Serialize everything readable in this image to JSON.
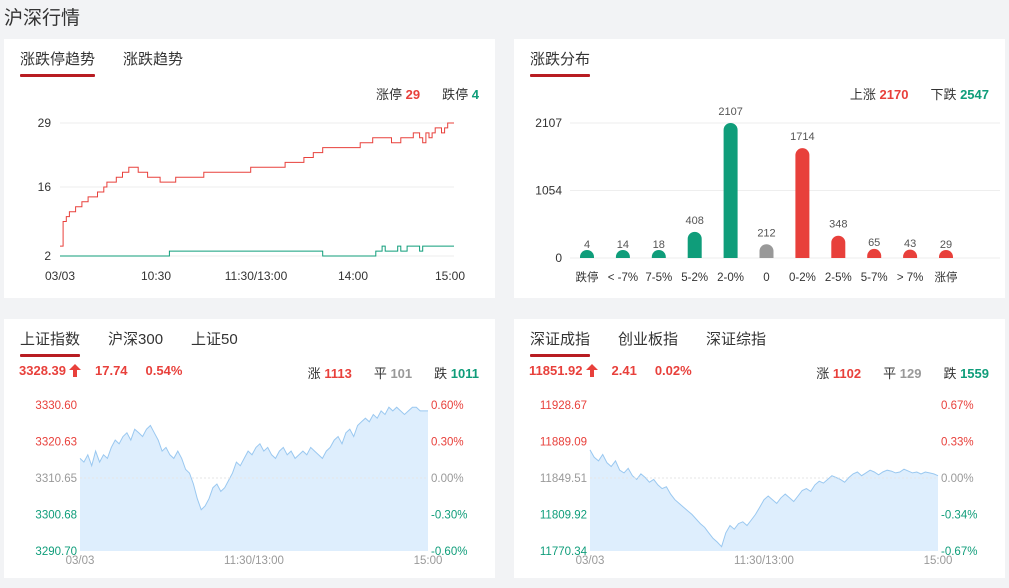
{
  "page_title": "沪深行情",
  "panel_limit": {
    "tabs": [
      "涨跌停趋势",
      "涨跌趋势"
    ],
    "stats": {
      "up_label": "涨停",
      "up_value": "29",
      "down_label": "跌停",
      "down_value": "4"
    }
  },
  "panel_dist": {
    "tabs": [
      "涨跌分布"
    ],
    "stats": {
      "up_label": "上涨",
      "up_value": "2170",
      "down_label": "下跌",
      "down_value": "2547"
    }
  },
  "panel_sh": {
    "tabs": [
      "上证指数",
      "沪深300",
      "上证50"
    ],
    "price": "3328.39",
    "change": "17.74",
    "change_pct": "0.54%",
    "stats": {
      "up_label": "涨",
      "up_value": "1113",
      "flat_label": "平",
      "flat_value": "101",
      "down_label": "跌",
      "down_value": "1011"
    }
  },
  "panel_sz": {
    "tabs": [
      "深证成指",
      "创业板指",
      "深证综指"
    ],
    "price": "11851.92",
    "change": "2.41",
    "change_pct": "0.02%",
    "stats": {
      "up_label": "涨",
      "up_value": "1102",
      "flat_label": "平",
      "flat_value": "129",
      "down_label": "跌",
      "down_value": "1559"
    }
  },
  "colors": {
    "up": "#e8403b",
    "down": "#0f9d7a",
    "flat": "#999999",
    "area": "#deeefd",
    "area_line": "#9ac8f0",
    "accent": "#b81c22"
  },
  "chart_data": [
    {
      "type": "line",
      "y_ticks": [
        2,
        16,
        29
      ],
      "ylim": [
        2,
        29
      ],
      "x_tick_labels": [
        "03/03",
        "10:30",
        "11:30/13:00",
        "14:00",
        "15:00"
      ],
      "series": [
        {
          "name": "涨停",
          "color": "#e8403b",
          "values": [
            4,
            9,
            10,
            11,
            11,
            12,
            12,
            13,
            13,
            14,
            14,
            14,
            15,
            15,
            16,
            17,
            17,
            17,
            18,
            18,
            19,
            19,
            20,
            20,
            20,
            19,
            19,
            19,
            18,
            18,
            18,
            18,
            17,
            17,
            17,
            17,
            17,
            18,
            18,
            18,
            18,
            18,
            18,
            18,
            18,
            18,
            19,
            19,
            19,
            19,
            19,
            19,
            19,
            19,
            19,
            19,
            19,
            19,
            19,
            19,
            19,
            20,
            20,
            20,
            20,
            20,
            20,
            20,
            20,
            20,
            20,
            20,
            21,
            21,
            21,
            21,
            21,
            21,
            22,
            22,
            22,
            23,
            23,
            23,
            24,
            24,
            24,
            24,
            24,
            24,
            24,
            24,
            24,
            24,
            24,
            24,
            25,
            25,
            25,
            25,
            26,
            26,
            26,
            26,
            26,
            26,
            25,
            25,
            25,
            26,
            26,
            26,
            26,
            27,
            27,
            26,
            25,
            27,
            26,
            27,
            28,
            28,
            27,
            28,
            29,
            29,
            29
          ]
        },
        {
          "name": "跌停",
          "color": "#0f9d7a",
          "values": [
            2,
            2,
            2,
            2,
            2,
            2,
            2,
            2,
            2,
            2,
            2,
            2,
            2,
            2,
            2,
            2,
            2,
            2,
            2,
            2,
            2,
            2,
            2,
            2,
            2,
            2,
            2,
            2,
            2,
            2,
            2,
            2,
            2,
            2,
            2,
            3,
            3,
            3,
            3,
            3,
            3,
            3,
            3,
            3,
            3,
            3,
            3,
            3,
            3,
            3,
            3,
            3,
            3,
            3,
            3,
            3,
            3,
            3,
            3,
            3,
            3,
            3,
            3,
            3,
            3,
            3,
            3,
            3,
            3,
            3,
            3,
            3,
            3,
            3,
            3,
            3,
            3,
            3,
            3,
            3,
            3,
            3,
            3,
            3,
            2,
            2,
            2,
            2,
            2,
            2,
            2,
            2,
            2,
            2,
            2,
            2,
            2,
            2,
            2,
            2,
            2,
            3,
            3,
            4,
            3,
            3,
            3,
            3,
            4,
            3,
            3,
            4,
            4,
            4,
            4,
            3,
            4,
            4,
            4,
            4,
            4,
            4,
            4,
            4,
            4,
            4,
            4
          ]
        }
      ]
    },
    {
      "type": "bar",
      "y_ticks": [
        0,
        1054,
        2107
      ],
      "ylim": [
        0,
        2107
      ],
      "categories": [
        "跌停",
        "< -7%",
        "7-5%",
        "5-2%",
        "2-0%",
        "0",
        "0-2%",
        "2-5%",
        "5-7%",
        "> 7%",
        "涨停"
      ],
      "values": [
        4,
        14,
        18,
        408,
        2107,
        212,
        1714,
        348,
        65,
        43,
        29
      ],
      "bar_colors": [
        "#0f9d7a",
        "#0f9d7a",
        "#0f9d7a",
        "#0f9d7a",
        "#0f9d7a",
        "#999999",
        "#e8403b",
        "#e8403b",
        "#e8403b",
        "#e8403b",
        "#e8403b"
      ]
    },
    {
      "type": "area",
      "y_ticks_left": [
        "3330.60",
        "3320.63",
        "3310.65",
        "3300.68",
        "3290.70"
      ],
      "y_ticks_right": [
        "0.60%",
        "0.30%",
        "0.00%",
        "-0.30%",
        "-0.60%"
      ],
      "ylim": [
        3290.7,
        3330.6
      ],
      "x_tick_labels": [
        "03/03",
        "11:30/13:00",
        "15:00"
      ],
      "values": [
        3316,
        3315,
        3317,
        3314,
        3318,
        3315,
        3317,
        3316,
        3319,
        3321,
        3320,
        3322,
        3323,
        3321,
        3324,
        3323,
        3322,
        3324,
        3325,
        3323,
        3321,
        3318,
        3319,
        3317,
        3316,
        3318,
        3316,
        3313,
        3312,
        3309,
        3305,
        3302,
        3303,
        3305,
        3308,
        3309,
        3307,
        3308,
        3310,
        3312,
        3315,
        3314,
        3316,
        3318,
        3317,
        3319,
        3320,
        3318,
        3319,
        3317,
        3316,
        3318,
        3319,
        3317,
        3318,
        3316,
        3317,
        3318,
        3317,
        3319,
        3318,
        3317,
        3316,
        3318,
        3319,
        3321,
        3322,
        3320,
        3323,
        3324,
        3322,
        3325,
        3326,
        3327,
        3326,
        3328,
        3327,
        3329,
        3328,
        3330,
        3329,
        3330,
        3329,
        3328,
        3329,
        3330,
        3330,
        3329,
        3329,
        3329
      ]
    },
    {
      "type": "area",
      "y_ticks_left": [
        "11928.67",
        "11889.09",
        "11849.51",
        "11809.92",
        "11770.34"
      ],
      "y_ticks_right": [
        "0.67%",
        "0.33%",
        "0.00%",
        "-0.34%",
        "-0.67%"
      ],
      "ylim": [
        11770.34,
        11928.67
      ],
      "x_tick_labels": [
        "03/03",
        "11:30/13:00",
        "15:00"
      ],
      "values": [
        11880,
        11872,
        11868,
        11875,
        11866,
        11862,
        11868,
        11858,
        11855,
        11860,
        11852,
        11848,
        11854,
        11850,
        11845,
        11848,
        11842,
        11838,
        11840,
        11832,
        11826,
        11822,
        11818,
        11814,
        11810,
        11805,
        11800,
        11796,
        11790,
        11784,
        11780,
        11775,
        11790,
        11798,
        11794,
        11800,
        11802,
        11798,
        11804,
        11810,
        11818,
        11826,
        11830,
        11826,
        11822,
        11828,
        11832,
        11828,
        11824,
        11830,
        11836,
        11838,
        11835,
        11842,
        11846,
        11844,
        11848,
        11852,
        11850,
        11848,
        11845,
        11850,
        11854,
        11856,
        11852,
        11855,
        11858,
        11856,
        11853,
        11856,
        11858,
        11857,
        11855,
        11856,
        11859,
        11857,
        11855,
        11856,
        11854,
        11856,
        11855,
        11854,
        11852
      ]
    }
  ]
}
